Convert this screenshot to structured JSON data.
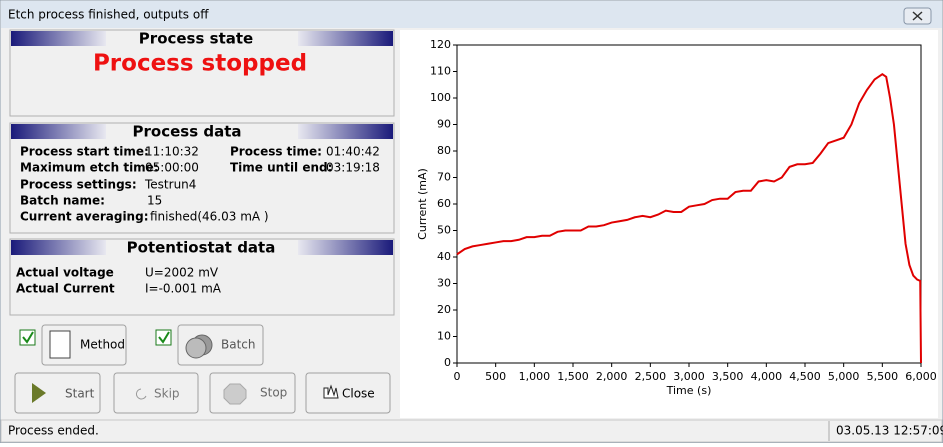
{
  "window": {
    "title": "Etch process finished, outputs off"
  },
  "process_state": {
    "title": "Process state",
    "status": "Process stopped"
  },
  "process_data": {
    "title": "Process data",
    "start_label": "Process start time:",
    "start_value": "11:10:32",
    "max_label": "Maximum etch time:",
    "max_value": "05:00:00",
    "settings_label": "Process settings:",
    "settings_value": "Testrun4",
    "batch_label": "Batch name:",
    "batch_value": "15",
    "averaging_label": "Current averaging:",
    "averaging_value": "finished(46.03 mA )",
    "time_label": "Process time:",
    "time_value": "01:40:42",
    "remaining_label": "Time until end:",
    "remaining_value": "03:19:18"
  },
  "potentiostat": {
    "title": "Potentiostat data",
    "voltage_label": "Actual voltage",
    "voltage_value": "U=2002 mV",
    "current_label": "Actual Current",
    "current_value": "I=-0.001 mA"
  },
  "buttons": {
    "method": "Method",
    "batch": "Batch",
    "start": "Start",
    "skip": "Skip",
    "stop": "Stop",
    "close": "Close"
  },
  "status_bar": {
    "message": "Process ended.",
    "timestamp": "03.05.13 12:57:09"
  },
  "chart_data": {
    "type": "line",
    "xlabel": "Time (s)",
    "ylabel": "Current (mA)",
    "color": "#e00000",
    "x": [
      0,
      100,
      200,
      300,
      400,
      500,
      600,
      700,
      800,
      900,
      1000,
      1100,
      1200,
      1300,
      1400,
      1500,
      1600,
      1700,
      1800,
      1900,
      2000,
      2100,
      2200,
      2300,
      2400,
      2500,
      2600,
      2700,
      2800,
      2900,
      3000,
      3100,
      3200,
      3300,
      3400,
      3500,
      3600,
      3700,
      3800,
      3900,
      4000,
      4100,
      4200,
      4300,
      4400,
      4500,
      4600,
      4700,
      4800,
      4900,
      5000,
      5100,
      5200,
      5300,
      5400,
      5500,
      5550,
      5600,
      5650,
      5700,
      5750,
      5800,
      5850,
      5900,
      5950,
      5990,
      6000
    ],
    "values": [
      41,
      43,
      44,
      44.5,
      45,
      45.5,
      46,
      46,
      46.5,
      47.5,
      47.5,
      48,
      48,
      49.5,
      50,
      50,
      50,
      51.5,
      51.5,
      52,
      53,
      53.5,
      54,
      55,
      55.5,
      55,
      56,
      57.5,
      57,
      57,
      59,
      59.5,
      60,
      61.5,
      62,
      62,
      64.5,
      65,
      65,
      68.5,
      69,
      68.5,
      70,
      74,
      75,
      75,
      75.5,
      79,
      83,
      84,
      85,
      90,
      98,
      103,
      107,
      109,
      108,
      100,
      90,
      75,
      60,
      45,
      37,
      33,
      31.5,
      31,
      0
    ],
    "xlim": [
      0,
      6000
    ],
    "ylim": [
      0,
      120
    ],
    "xticks": [
      0,
      500,
      {
        "value": 1000,
        "label": "1,000"
      },
      {
        "value": 1500,
        "label": "1,500"
      },
      {
        "value": 2000,
        "label": "2,000"
      },
      {
        "value": 2500,
        "label": "2,500"
      },
      {
        "value": 3000,
        "label": "3,000"
      },
      {
        "value": 3500,
        "label": "3,500"
      },
      {
        "value": 4000,
        "label": "4,000"
      },
      {
        "value": 4500,
        "label": "4,500"
      },
      {
        "value": 5000,
        "label": "5,000"
      },
      {
        "value": 5500,
        "label": "5,500"
      },
      {
        "value": 6000,
        "label": "6,000"
      }
    ],
    "yticks": [
      0,
      10,
      20,
      30,
      40,
      50,
      60,
      70,
      80,
      90,
      100,
      110,
      120
    ]
  }
}
